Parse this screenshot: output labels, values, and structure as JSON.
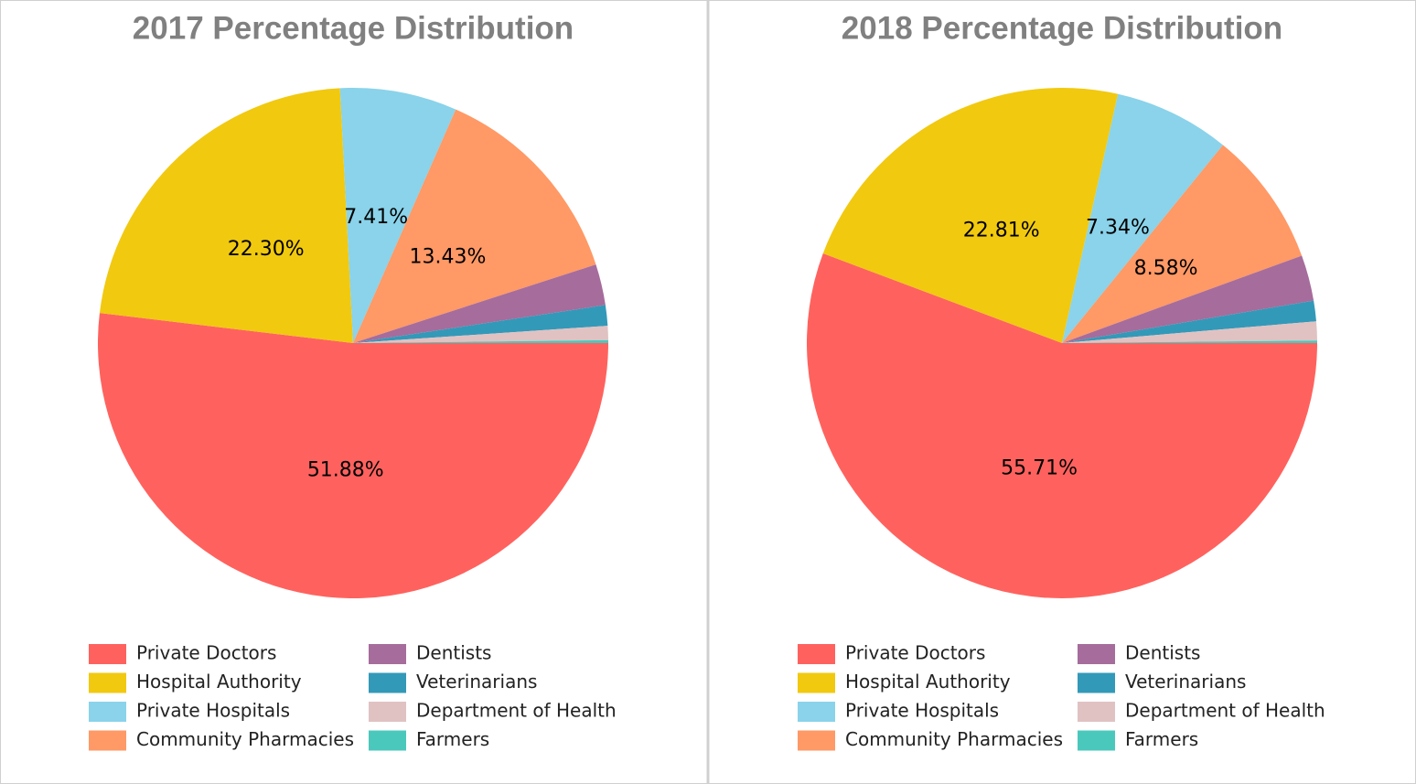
{
  "chart_data": [
    {
      "type": "pie",
      "title": "2017 Percentage Distribution",
      "categories": [
        "Private Doctors",
        "Hospital Authority",
        "Private Hospitals",
        "Community Pharmacies",
        "Dentists",
        "Veterinarians",
        "Department of Health",
        "Farmers"
      ],
      "values": [
        51.88,
        22.3,
        7.41,
        13.43,
        2.6,
        1.3,
        0.9,
        0.18
      ],
      "value_labels": [
        "51.88%",
        "22.30%",
        "7.41%",
        "13.43%",
        null,
        null,
        null,
        null
      ],
      "colors": [
        "#ff625e",
        "#f1c90f",
        "#8ad3ea",
        "#ff9966",
        "#a66c9c",
        "#3399b8",
        "#e0c2c3",
        "#4bc8bc"
      ]
    },
    {
      "type": "pie",
      "title": "2018 Percentage Distribution",
      "categories": [
        "Private Doctors",
        "Hospital Authority",
        "Private Hospitals",
        "Community Pharmacies",
        "Dentists",
        "Veterinarians",
        "Department of Health",
        "Farmers"
      ],
      "values": [
        55.71,
        22.81,
        7.34,
        8.58,
        2.9,
        1.3,
        1.2,
        0.16
      ],
      "value_labels": [
        "55.71%",
        "22.81%",
        "7.34%",
        "8.58%",
        null,
        null,
        null,
        null
      ],
      "colors": [
        "#ff625e",
        "#f1c90f",
        "#8ad3ea",
        "#ff9966",
        "#a66c9c",
        "#3399b8",
        "#e0c2c3",
        "#4bc8bc"
      ]
    }
  ]
}
